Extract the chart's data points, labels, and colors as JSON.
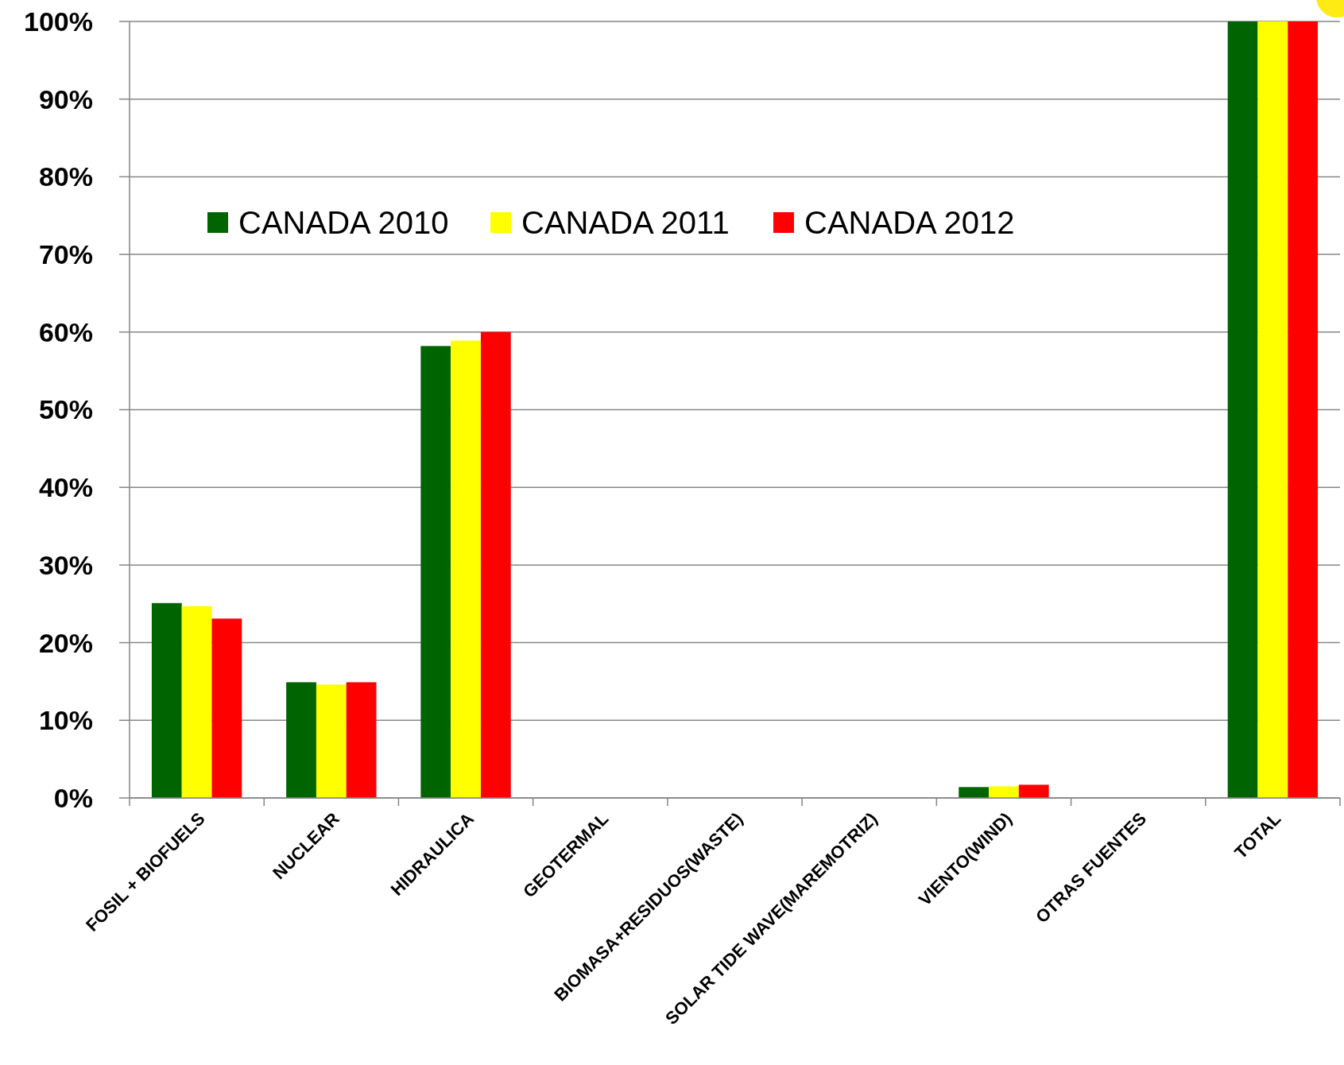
{
  "chart_data": {
    "type": "bar",
    "categories": [
      "FOSIL + BIOFUELS",
      "NUCLEAR",
      "HIDRAULICA",
      "GEOTERMAL",
      "BIOMASA+RESIDUOS(WASTE)",
      "SOLAR TIDE WAVE(MAREMOTRIZ)",
      "VIENTO(WIND)",
      "OTRAS FUENTES",
      "TOTAL"
    ],
    "series": [
      {
        "name": "CANADA 2010",
        "color": "#006400",
        "values": [
          25.1,
          14.9,
          58.2,
          0,
          0,
          0,
          1.4,
          0,
          100
        ]
      },
      {
        "name": "CANADA 2011",
        "color": "#ffff00",
        "values": [
          24.7,
          14.6,
          58.9,
          0,
          0,
          0,
          1.5,
          0,
          100
        ]
      },
      {
        "name": "CANADA 2012",
        "color": "#ff0000",
        "values": [
          23.1,
          14.9,
          60.0,
          0,
          0,
          0,
          1.7,
          0,
          100
        ]
      }
    ],
    "ylim": [
      0,
      100
    ],
    "yticks": [
      {
        "value": 0,
        "label": "0%"
      },
      {
        "value": 10,
        "label": "10%"
      },
      {
        "value": 20,
        "label": "20%"
      },
      {
        "value": 30,
        "label": "30%"
      },
      {
        "value": 40,
        "label": "40%"
      },
      {
        "value": 50,
        "label": "50%"
      },
      {
        "value": 60,
        "label": "60%"
      },
      {
        "value": 70,
        "label": "70%"
      },
      {
        "value": 80,
        "label": "80%"
      },
      {
        "value": 90,
        "label": "90%"
      },
      {
        "value": 100,
        "label": "100%"
      }
    ],
    "grid": "y",
    "legend": "top left"
  }
}
